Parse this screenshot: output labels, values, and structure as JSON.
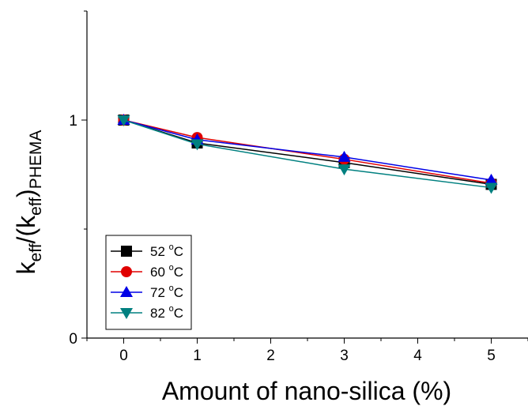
{
  "chart_data": {
    "type": "line",
    "xlabel": "Amount of nano-silica (%)",
    "ylabel": {
      "base": "k",
      "sub1": "eff",
      "mid": "/(k",
      "sub2": "eff",
      "close": ")",
      "sub3": "PHEMA"
    },
    "xlim": [
      -0.5,
      5.5
    ],
    "ylim": [
      0,
      1.5
    ],
    "x_ticks": [
      "0",
      "1",
      "2",
      "3",
      "4",
      "5"
    ],
    "y_ticks": [
      "0",
      "1"
    ],
    "grid": false,
    "legend_position": "bottom-left",
    "series": [
      {
        "name": "52 °C",
        "label_main": "52 ",
        "label_deg": "o",
        "label_unit": "C",
        "color": "#000000",
        "marker": "square",
        "x": [
          0,
          1,
          3,
          5
        ],
        "y": [
          1.0,
          0.895,
          0.805,
          0.705
        ]
      },
      {
        "name": "60 °C",
        "label_main": "60 ",
        "label_deg": "o",
        "label_unit": "C",
        "color": "#e00000",
        "marker": "circle",
        "x": [
          0,
          1,
          3,
          5
        ],
        "y": [
          1.0,
          0.92,
          0.82,
          0.71
        ]
      },
      {
        "name": "72 °C",
        "label_main": "72 ",
        "label_deg": "o",
        "label_unit": "C",
        "color": "#0000e6",
        "marker": "triangle-up",
        "x": [
          0,
          1,
          3,
          5
        ],
        "y": [
          1.0,
          0.91,
          0.83,
          0.725
        ]
      },
      {
        "name": "82 °C",
        "label_main": "82 ",
        "label_deg": "o",
        "label_unit": "C",
        "color": "#008080",
        "marker": "triangle-down",
        "x": [
          0,
          1,
          3,
          5
        ],
        "y": [
          1.0,
          0.89,
          0.775,
          0.69
        ]
      }
    ]
  }
}
